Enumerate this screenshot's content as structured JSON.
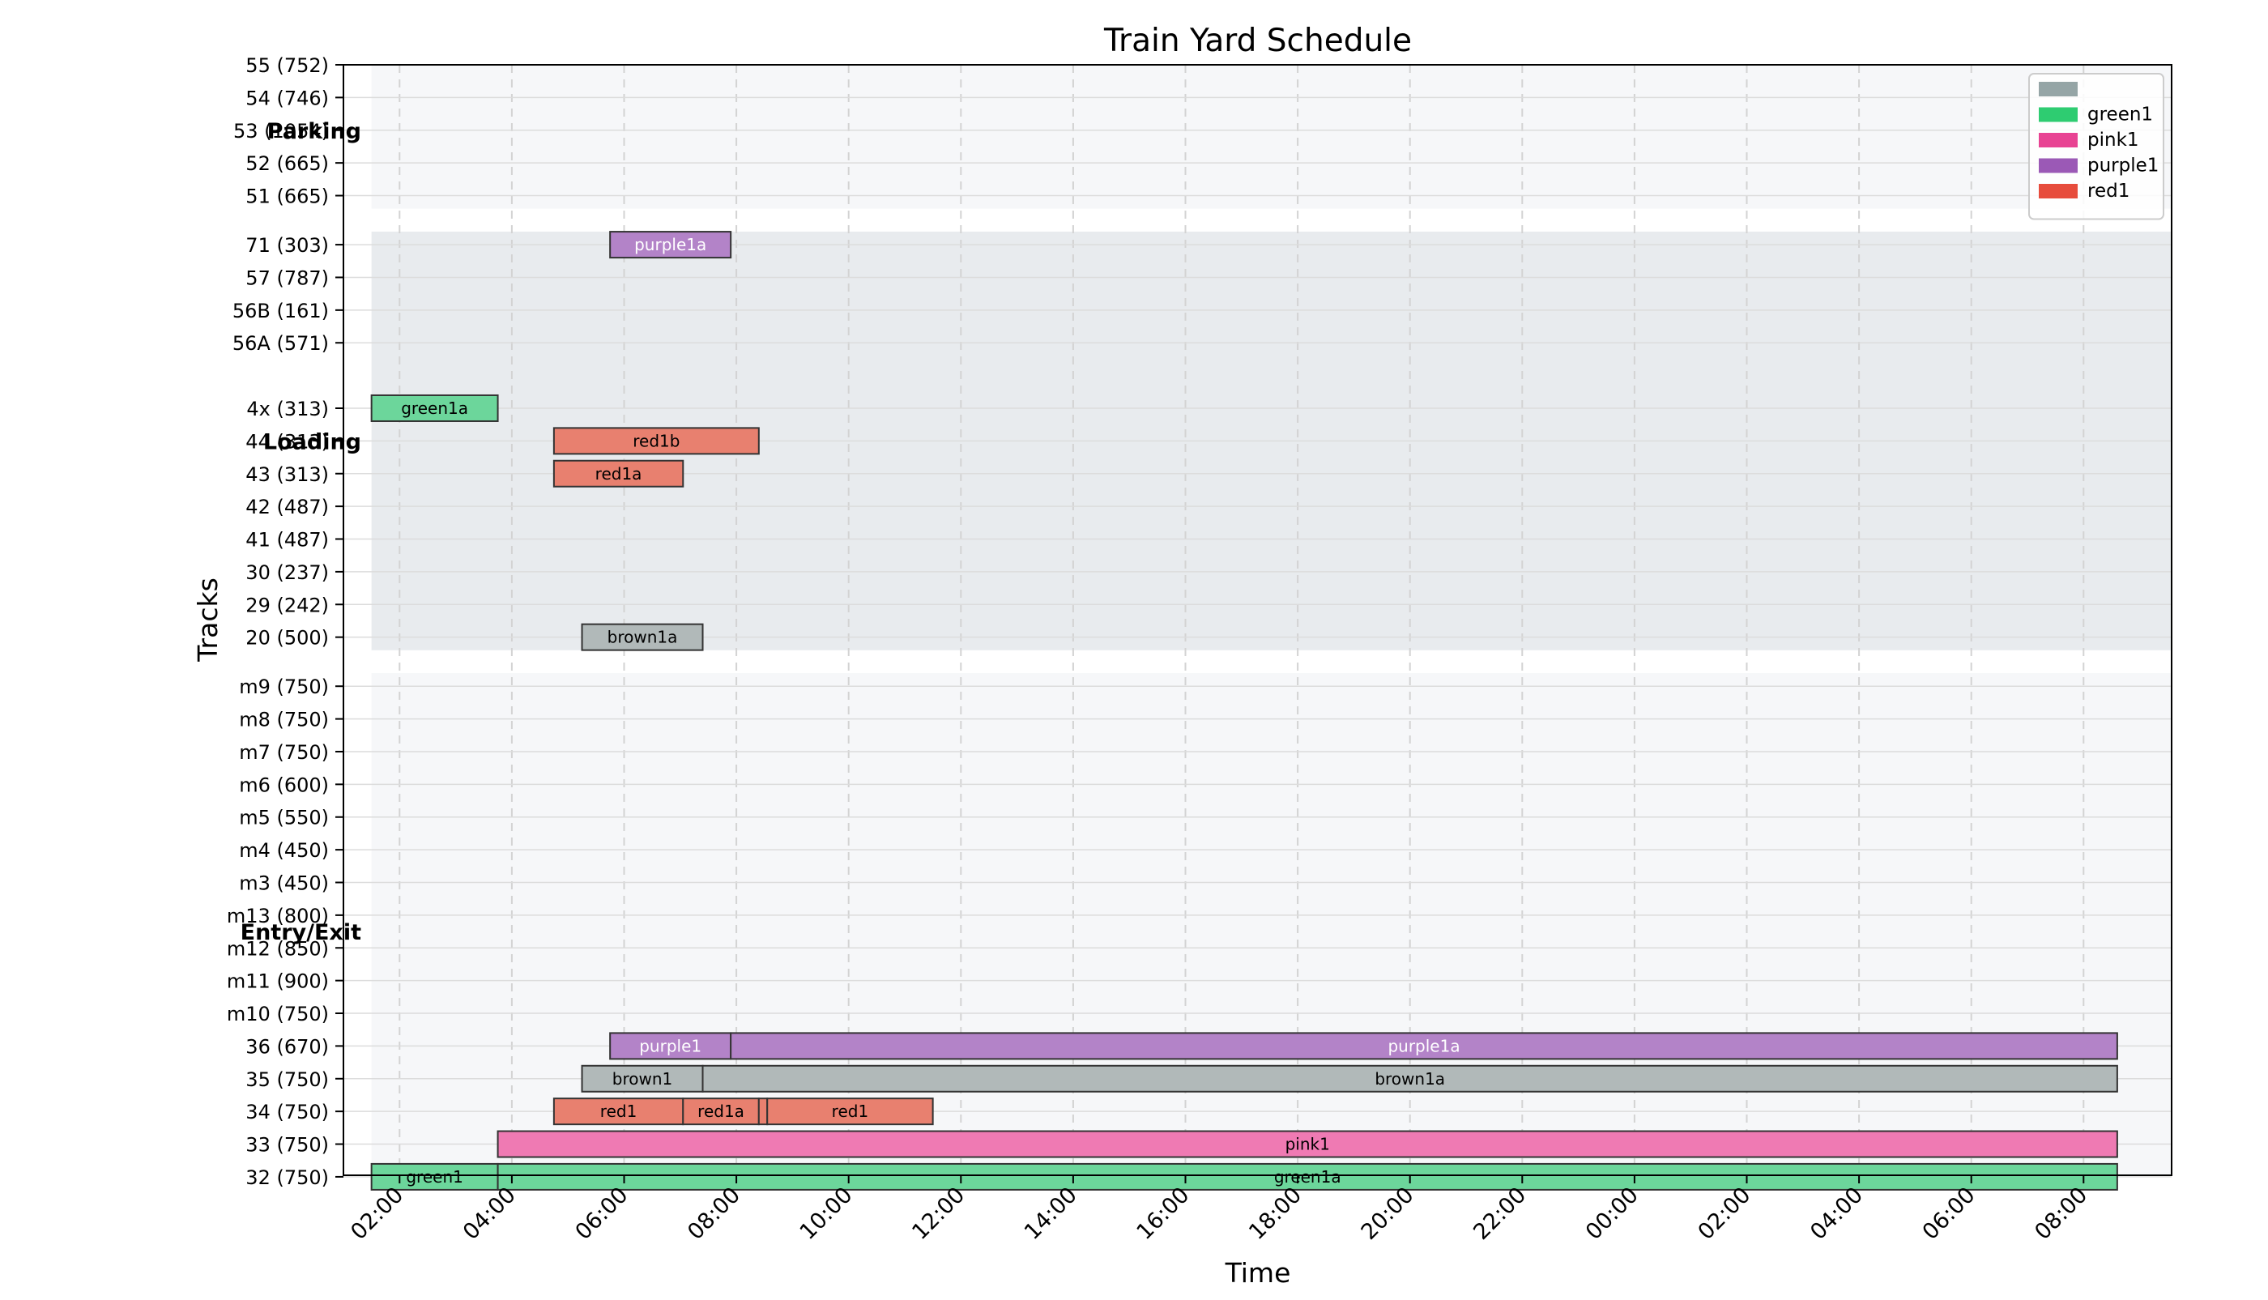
{
  "chart_data": {
    "type": "gantt",
    "title": "Train Yard Schedule",
    "xlabel": "Time",
    "ylabel": "Tracks",
    "x_tick_labels": [
      "02:00",
      "04:00",
      "06:00",
      "08:00",
      "10:00",
      "12:00",
      "14:00",
      "16:00",
      "18:00",
      "20:00",
      "22:00",
      "00:00",
      "02:00",
      "04:00",
      "06:00",
      "08:00"
    ],
    "x_range_hours": [
      1.0,
      33.0
    ],
    "x_tick_start_hours": 2,
    "x_tick_step_hours": 2,
    "tracks": [
      {
        "label": "55 (752)",
        "row": 0
      },
      {
        "label": "54 (746)",
        "row": 1
      },
      {
        "label": "53 (1054)",
        "row": 2
      },
      {
        "label": "52 (665)",
        "row": 3
      },
      {
        "label": "51 (665)",
        "row": 4
      },
      {
        "label": "71 (303)",
        "row": 5.5
      },
      {
        "label": "57 (787)",
        "row": 6.5
      },
      {
        "label": "56B (161)",
        "row": 7.5
      },
      {
        "label": "56A (571)",
        "row": 8.5
      },
      {
        "label": "4x (313)",
        "row": 10.5
      },
      {
        "label": "44 (313)",
        "row": 11.5
      },
      {
        "label": "43 (313)",
        "row": 12.5
      },
      {
        "label": "42 (487)",
        "row": 13.5
      },
      {
        "label": "41 (487)",
        "row": 14.5
      },
      {
        "label": "30 (237)",
        "row": 15.5
      },
      {
        "label": "29 (242)",
        "row": 16.5
      },
      {
        "label": "20 (500)",
        "row": 17.5
      },
      {
        "label": "m9 (750)",
        "row": 19
      },
      {
        "label": "m8 (750)",
        "row": 20
      },
      {
        "label": "m7 (750)",
        "row": 21
      },
      {
        "label": "m6 (600)",
        "row": 22
      },
      {
        "label": "m5 (550)",
        "row": 23
      },
      {
        "label": "m4 (450)",
        "row": 24
      },
      {
        "label": "m3 (450)",
        "row": 25
      },
      {
        "label": "m13 (800)",
        "row": 26
      },
      {
        "label": "m12 (850)",
        "row": 27
      },
      {
        "label": "m11 (900)",
        "row": 28
      },
      {
        "label": "m10 (750)",
        "row": 29
      },
      {
        "label": "36 (670)",
        "row": 30
      },
      {
        "label": "35 (750)",
        "row": 31
      },
      {
        "label": "34 (750)",
        "row": 32
      },
      {
        "label": "33 (750)",
        "row": 33
      },
      {
        "label": "32 (750)",
        "row": 34
      }
    ],
    "row_range": [
      0,
      34
    ],
    "zones": [
      {
        "label": "Parking",
        "row_from": -0.5,
        "row_to": 4.4,
        "label_row": 2,
        "color": "#f6f7f9"
      },
      {
        "label": "Loading",
        "row_from": 5.1,
        "row_to": 17.9,
        "label_row": 11.5,
        "color": "#e8ebee"
      },
      {
        "label": "Entry/Exit",
        "row_from": 18.6,
        "row_to": 34.5,
        "label_row": 26.5,
        "color": "#f6f7f9"
      }
    ],
    "legend": {
      "placement": "top-right",
      "entries": [
        {
          "label": "",
          "color": "#95a5a6"
        },
        {
          "label": "green1",
          "color": "#2ecc71"
        },
        {
          "label": "pink1",
          "color": "#e84393"
        },
        {
          "label": "purple1",
          "color": "#9b59b6"
        },
        {
          "label": "red1",
          "color": "#e74c3c"
        }
      ]
    },
    "bars": [
      {
        "label": "purple1a",
        "row": 5.5,
        "start": 5.75,
        "end": 7.9,
        "fill": "#b383c8",
        "text_color": "#ffffff"
      },
      {
        "label": "green1a",
        "row": 10.5,
        "start": 1.5,
        "end": 3.75,
        "fill": "#6cd69b",
        "text_color": "#000000"
      },
      {
        "label": "red1b",
        "row": 11.5,
        "start": 4.75,
        "end": 8.4,
        "fill": "#e8806f",
        "text_color": "#000000"
      },
      {
        "label": "red1a",
        "row": 12.5,
        "start": 4.75,
        "end": 7.05,
        "fill": "#e8806f",
        "text_color": "#000000"
      },
      {
        "label": "brown1a",
        "row": 17.5,
        "start": 5.25,
        "end": 7.4,
        "fill": "#b1b9b9",
        "text_color": "#000000"
      },
      {
        "label": "purple1",
        "row": 30,
        "start": 5.75,
        "end": 7.9,
        "fill": "#b383c8",
        "text_color": "#ffffff"
      },
      {
        "label": "purple1a",
        "row": 30,
        "start": 7.9,
        "end": 32.6,
        "fill": "#b383c8",
        "text_color": "#ffffff"
      },
      {
        "label": "brown1",
        "row": 31,
        "start": 5.25,
        "end": 7.4,
        "fill": "#b1b9b9",
        "text_color": "#000000"
      },
      {
        "label": "brown1a",
        "row": 31,
        "start": 7.4,
        "end": 32.6,
        "fill": "#b1b9b9",
        "text_color": "#000000"
      },
      {
        "label": "red1",
        "row": 32,
        "start": 4.75,
        "end": 7.05,
        "fill": "#e8806f",
        "text_color": "#000000"
      },
      {
        "label": "red1a",
        "row": 32,
        "start": 7.05,
        "end": 8.4,
        "fill": "#e8806f",
        "text_color": "#000000"
      },
      {
        "label": "",
        "row": 32,
        "start": 8.4,
        "end": 8.55,
        "fill": "#e8806f",
        "text_color": "#000000"
      },
      {
        "label": "red1",
        "row": 32,
        "start": 8.55,
        "end": 11.5,
        "fill": "#e8806f",
        "text_color": "#000000"
      },
      {
        "label": "pink1",
        "row": 33,
        "start": 3.75,
        "end": 32.6,
        "fill": "#ef7ab3",
        "text_color": "#000000"
      },
      {
        "label": "green1",
        "row": 34,
        "start": 1.5,
        "end": 3.75,
        "fill": "#6cd69b",
        "text_color": "#000000"
      },
      {
        "label": "green1a",
        "row": 34,
        "start": 3.75,
        "end": 32.6,
        "fill": "#6cd69b",
        "text_color": "#000000"
      }
    ],
    "grid": true
  }
}
